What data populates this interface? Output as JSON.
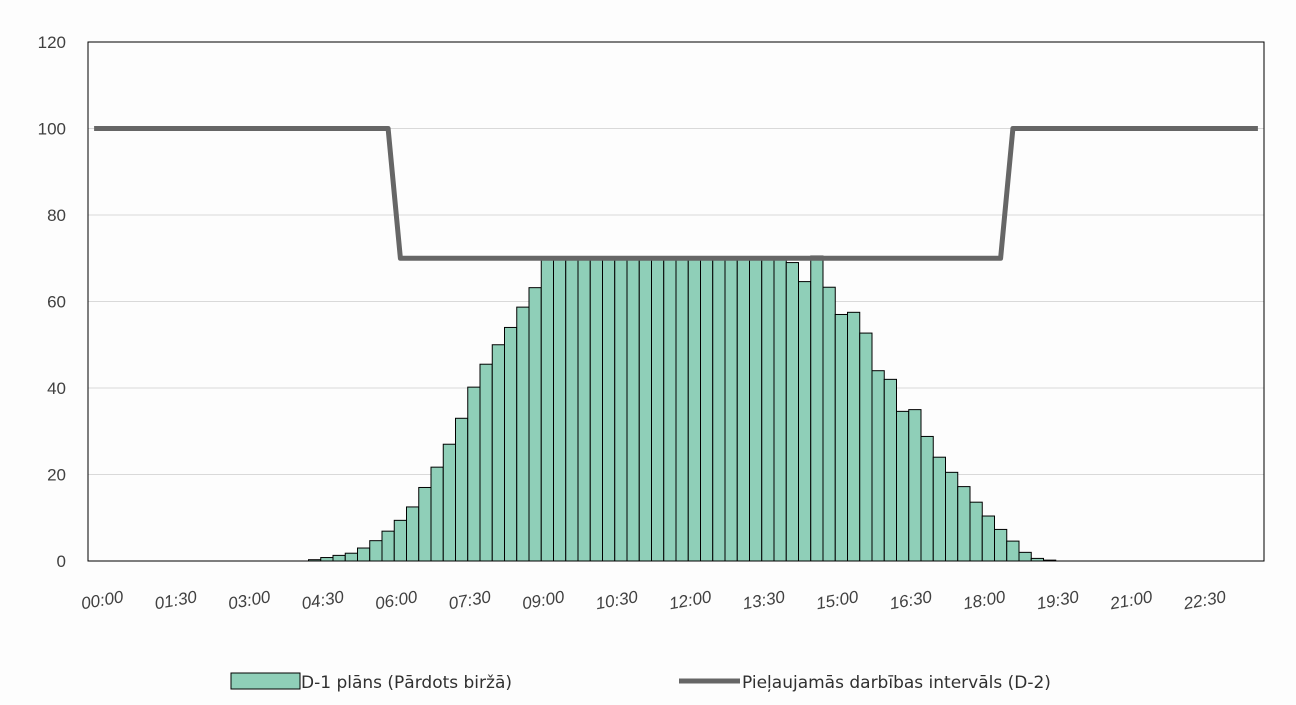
{
  "colors": {
    "bar_fill": "#8fcfb8",
    "bar_stroke": "#000000",
    "line": "#666666",
    "grid": "#d9d9d9",
    "axis": "#000000"
  },
  "chart_data": {
    "type": "bar",
    "title": "",
    "xlabel": "",
    "ylabel": "",
    "ylim": [
      0,
      120
    ],
    "y_ticks": [
      0,
      20,
      40,
      60,
      80,
      100,
      120
    ],
    "x_tick_labels": [
      "00:00",
      "01:30",
      "03:00",
      "04:30",
      "06:00",
      "07:30",
      "09:00",
      "10:30",
      "12:00",
      "13:30",
      "15:00",
      "16:30",
      "18:00",
      "19:30",
      "21:00",
      "22:30"
    ],
    "interval_minutes": 15,
    "grid": true,
    "legend_position": "bottom",
    "series": [
      {
        "name": "D-1 plāns (Pārdots biržā)",
        "type": "bar",
        "start_time": "00:00",
        "values": [
          0,
          0,
          0,
          0,
          0,
          0,
          0,
          0,
          0,
          0,
          0,
          0,
          0,
          0,
          0,
          0,
          0,
          0,
          0.3,
          0.8,
          1.3,
          1.8,
          3,
          4.7,
          6.9,
          9.4,
          12.5,
          17,
          21.7,
          27,
          33,
          40.2,
          45.5,
          50,
          54,
          58.7,
          63.2,
          70,
          70,
          70,
          70,
          70,
          70,
          70,
          70,
          70,
          70,
          70,
          70,
          70,
          70,
          70,
          70,
          70,
          70,
          70,
          70,
          69,
          64.6,
          70.5,
          63.3,
          57,
          57.5,
          52.7,
          44,
          42,
          34.6,
          35,
          28.8,
          24,
          20.5,
          17.2,
          13.6,
          10.4,
          7.3,
          4.6,
          2,
          0.6,
          0.2,
          0,
          0,
          0,
          0,
          0,
          0,
          0,
          0,
          0,
          0,
          0,
          0,
          0,
          0,
          0,
          0,
          0,
          0,
          0,
          0
        ]
      },
      {
        "name": "Pieļaujamās darbības intervāls (D-2)",
        "type": "line",
        "points": [
          [
            "00:00",
            100
          ],
          [
            "06:00",
            100
          ],
          [
            "06:15",
            70
          ],
          [
            "18:30",
            70
          ],
          [
            "18:45",
            100
          ],
          [
            "23:45",
            100
          ]
        ]
      }
    ]
  }
}
